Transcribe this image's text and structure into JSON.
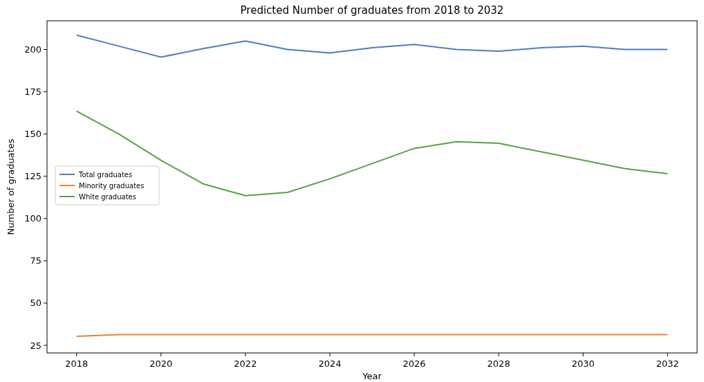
{
  "chart_data": {
    "type": "line",
    "title": "Predicted Number of graduates from 2018 to 2032",
    "xlabel": "Year",
    "ylabel": "Number of graduates",
    "x": [
      2018,
      2019,
      2020,
      2021,
      2022,
      2023,
      2024,
      2025,
      2026,
      2027,
      2028,
      2029,
      2030,
      2031,
      2032
    ],
    "series": [
      {
        "name": "Total graduates",
        "color": "#4a7fc0",
        "values": [
          208.5,
          202,
          195.5,
          200.5,
          205,
          200,
          198,
          201,
          203,
          200,
          199,
          201,
          202,
          200,
          200
        ]
      },
      {
        "name": "Minority graduates",
        "color": "#f08030",
        "values": [
          30.3,
          31.3,
          31.3,
          31.3,
          31.3,
          31.3,
          31.3,
          31.3,
          31.3,
          31.3,
          31.3,
          31.3,
          31.3,
          31.3,
          31.3
        ]
      },
      {
        "name": "White graduates",
        "color": "#55a345",
        "values": [
          163.5,
          150,
          134.5,
          120.5,
          113.5,
          115.5,
          123.5,
          132.5,
          141.5,
          145.5,
          144.5,
          139.5,
          134.5,
          129.5,
          126.5
        ]
      }
    ],
    "xlim": [
      2017.3,
      2032.7
    ],
    "xticks": [
      2018,
      2020,
      2022,
      2024,
      2026,
      2028,
      2030,
      2032
    ],
    "ylim": [
      20.5,
      217
    ],
    "yticks": [
      25,
      50,
      75,
      100,
      125,
      150,
      175,
      200
    ],
    "legend": "center left",
    "grid": false,
    "marker": "none",
    "line_style": "solid"
  }
}
